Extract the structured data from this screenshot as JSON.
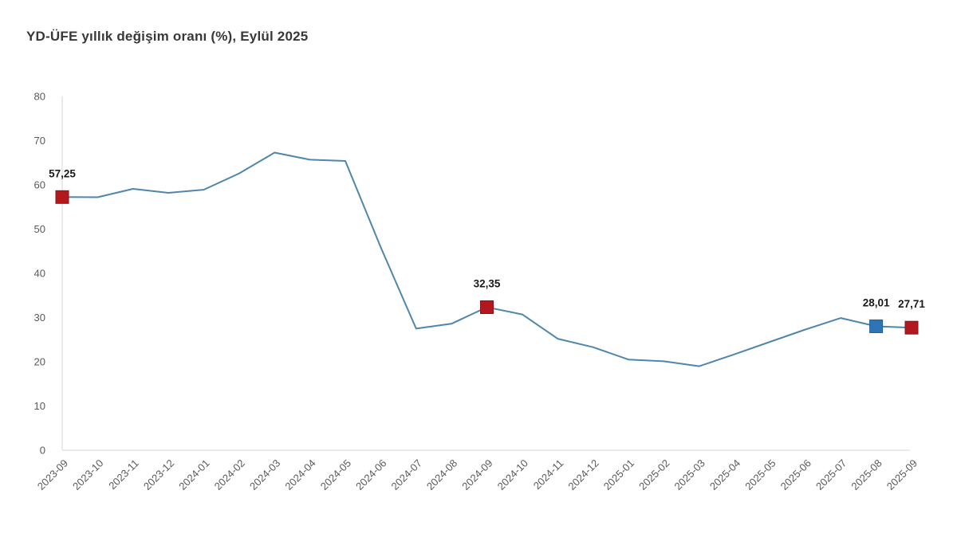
{
  "page": {
    "background": "#ffffff"
  },
  "chart_data": {
    "type": "line",
    "title": "YD-ÜFE yıllık değişim oranı (%), Eylül 2025",
    "x": [
      "2023-09",
      "2023-10",
      "2023-11",
      "2023-12",
      "2024-01",
      "2024-02",
      "2024-03",
      "2024-04",
      "2024-05",
      "2024-06",
      "2024-07",
      "2024-08",
      "2024-09",
      "2024-10",
      "2024-11",
      "2024-12",
      "2025-01",
      "2025-02",
      "2025-03",
      "2025-04",
      "2025-05",
      "2025-06",
      "2025-07",
      "2025-08",
      "2025-09"
    ],
    "values": [
      57.25,
      57.2,
      59.1,
      58.2,
      58.9,
      62.6,
      67.3,
      65.7,
      65.4,
      45.9,
      27.5,
      28.6,
      32.35,
      30.7,
      25.2,
      23.3,
      20.5,
      20.1,
      19.0,
      21.7,
      24.5,
      27.3,
      29.9,
      28.01,
      27.71
    ],
    "ylim": [
      0,
      80
    ],
    "yticks": [
      0,
      10,
      20,
      30,
      40,
      50,
      60,
      70,
      80
    ],
    "grid": false,
    "legend": "none",
    "xlabel": "",
    "ylabel": "",
    "line_color": "#4e86ac",
    "axis_color": "#e3e3e3",
    "tick_label_color": "#595959",
    "highlighted_points": [
      {
        "x": "2023-09",
        "value": 57.25,
        "label": "57,25",
        "fill": "#b2181e",
        "border": "#8e1318"
      },
      {
        "x": "2024-09",
        "value": 32.35,
        "label": "32,35",
        "fill": "#b2181e",
        "border": "#8e1318"
      },
      {
        "x": "2025-08",
        "value": 28.01,
        "label": "28,01",
        "fill": "#2e75b6",
        "border": "#1f5fa0"
      },
      {
        "x": "2025-09",
        "value": 27.71,
        "label": "27,71",
        "fill": "#b2181e",
        "border": "#8e1318"
      }
    ]
  }
}
